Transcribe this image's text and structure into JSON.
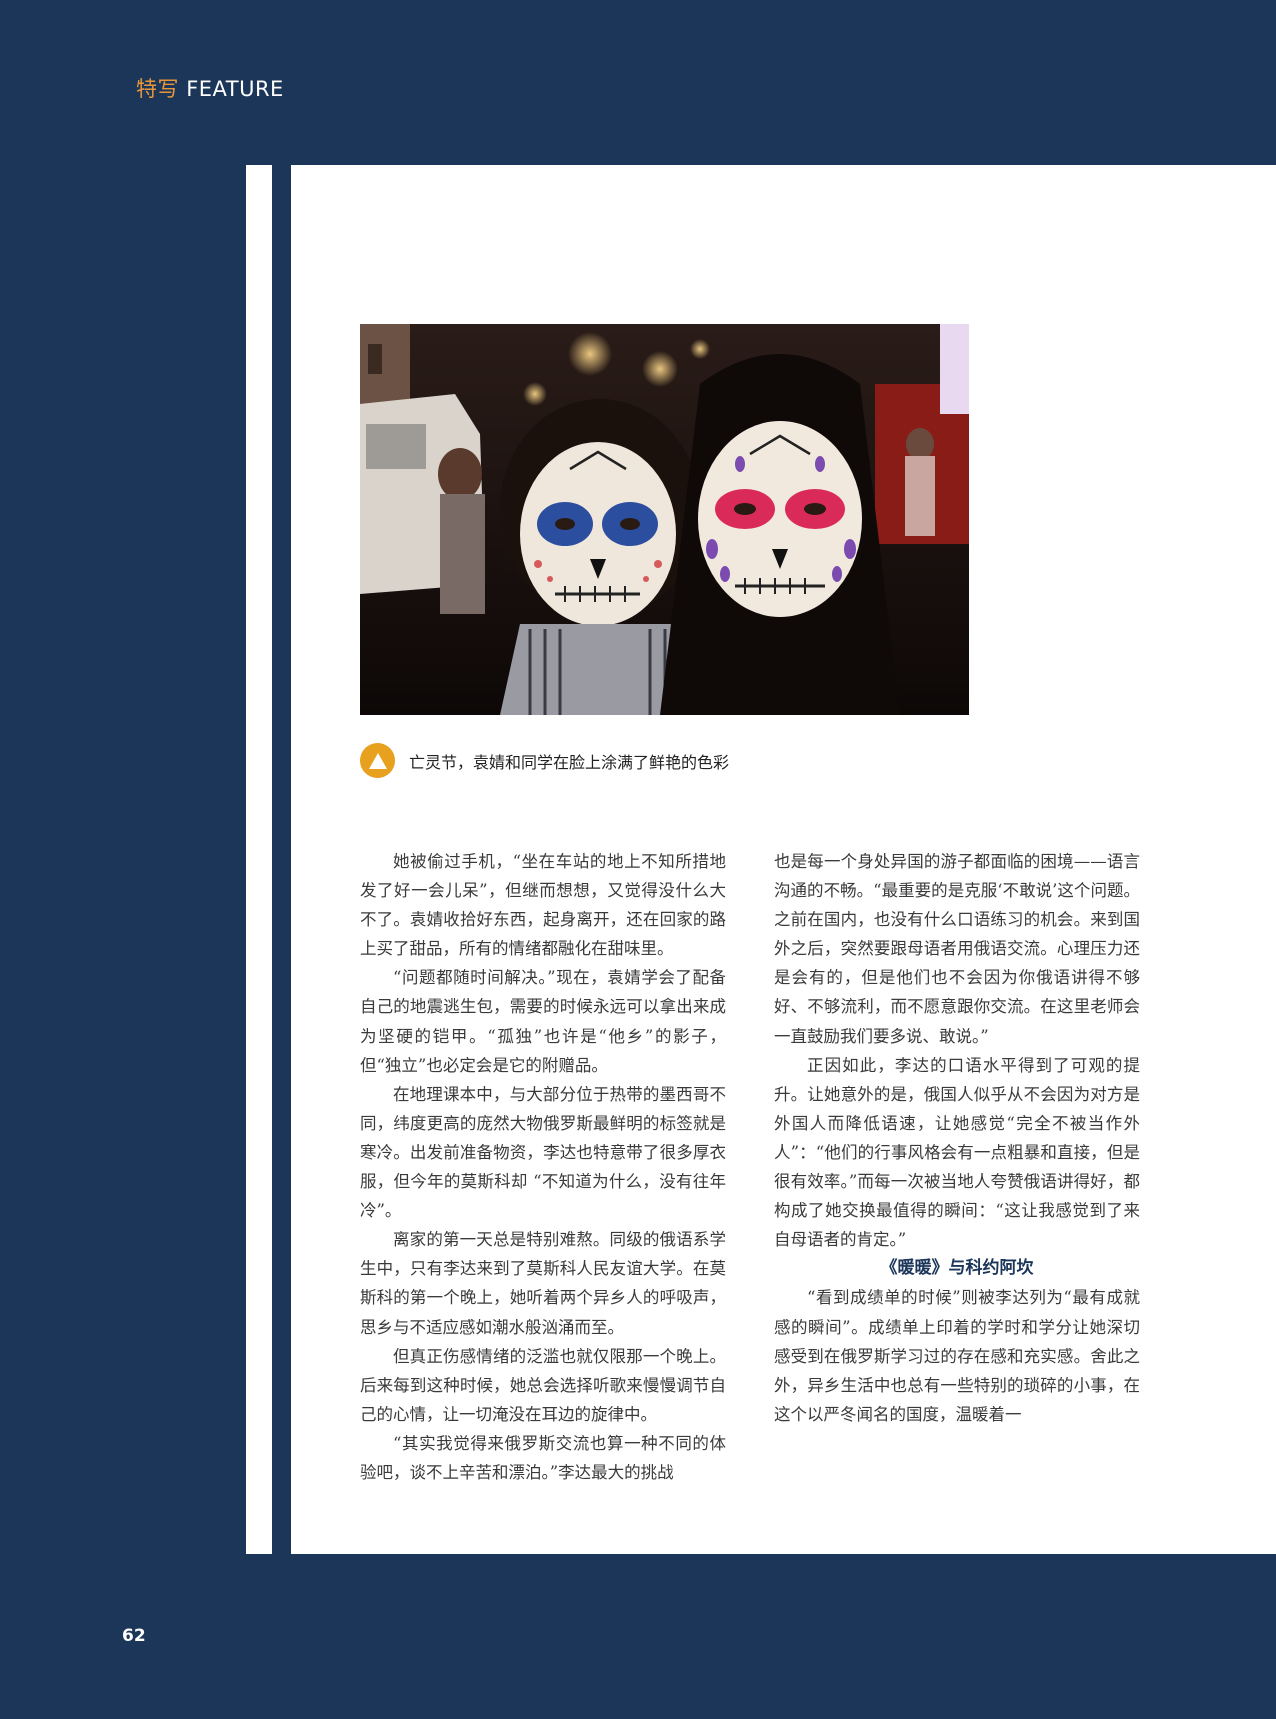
{
  "header": {
    "section_zh": "特写",
    "section_en": "FEATURE"
  },
  "photo": {
    "alt": "亡灵节，袁婧和同学在脸上涂满了鲜艳的色彩"
  },
  "caption": {
    "text": "亡灵节，袁婧和同学在脸上涂满了鲜艳的色彩"
  },
  "article": {
    "left_column": [
      {
        "text": "她被偷过手机，“坐在车站的地上不知所措地发了好一会儿呆”，但继而想想，又觉得没什么大不了。袁婧收拾好东西，起身离开，还在回家的路上买了甜品，所有的情绪都融化在甜味里。"
      },
      {
        "text": "“问题都随时间解决。”现在，袁婧学会了配备自己的地震逃生包，需要的时候永远可以拿出来成为坚硬的铠甲。“孤独”也许是“他乡”的影子，但“独立”也必定会是它的附赠品。"
      },
      {
        "text": "在地理课本中，与大部分位于热带的墨西哥不同，纬度更高的庞然大物俄罗斯最鲜明的标签就是寒冷。出发前准备物资，李达也特意带了很多厚衣服，但今年的莫斯科却 “不知道为什么，没有往年冷”。"
      },
      {
        "text": "离家的第一天总是特别难熬。同级的俄语系学生中，只有李达来到了莫斯科人民友谊大学。在莫斯科的第一个晚上，她听着两个异乡人的呼吸声，思乡与不适应感如潮水般汹涌而至。"
      },
      {
        "text": "但真正伤感情绪的泛滥也就仅限那一个晚上。后来每到这种时候，她总会选择听歌来慢慢调节自己的心情，让一切淹没在耳边的旋律中。"
      },
      {
        "text": "“其实我觉得来俄罗斯交流也算一种不同的体验吧，谈不上辛苦和漂泊。”李达最大的挑战"
      }
    ],
    "right_column": [
      {
        "text": "也是每一个身处异国的游子都面临的困境——语言沟通的不畅。“最重要的是克服‘不敢说’这个问题。之前在国内，也没有什么口语练习的机会。来到国外之后，突然要跟母语者用俄语交流。心理压力还是会有的，但是他们也不会因为你俄语讲得不够好、不够流利，而不愿意跟你交流。在这里老师会一直鼓励我们要多说、敢说。”"
      },
      {
        "text": "正因如此，李达的口语水平得到了可观的提升。让她意外的是，俄国人似乎从不会因为对方是外国人而降低语速，让她感觉“完全不被当作外人”：“他们的行事风格会有一点粗暴和直接，但是很有效率。”而每一次被当地人夸赞俄语讲得好，都构成了她交换最值得的瞬间：“这让我感觉到了来自母语者的肯定。”"
      }
    ],
    "subheading": "《暖暖》与科约阿坎",
    "right_column_after": [
      {
        "text": "“看到成绩单的时候”则被李达列为“最有成就感的瞬间”。成绩单上印着的学时和学分让她深切感受到在俄罗斯学习过的存在感和充实感。舍此之外，异乡生活中也总有一些特别的琐碎的小事，在这个以严冬闻名的国度，温暖着一"
      }
    ]
  },
  "footer": {
    "page_number": "62"
  },
  "colors": {
    "navy": "#1c3659",
    "orange": "#e8963a",
    "badge": "#e8a01f"
  }
}
